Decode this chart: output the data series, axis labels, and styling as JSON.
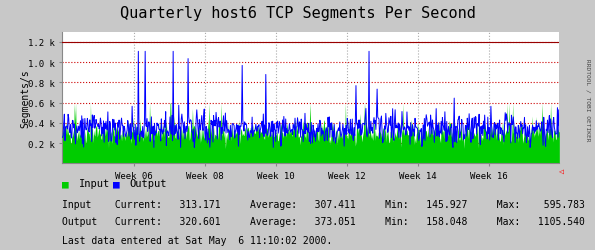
{
  "title": "Quarterly host6 TCP Segments Per Second",
  "ylabel": "Segments/s",
  "bg_color": "#c8c8c8",
  "plot_bg_color": "#ffffff",
  "grid_color_h": "#cc0000",
  "grid_color_v": "#aaaaaa",
  "input_color": "#00cc00",
  "output_color": "#0000ff",
  "ytick_labels": [
    "0.2 k",
    "0.4 k",
    "0.6 k",
    "0.8 k",
    "1.0 k",
    "1.2 k"
  ],
  "ytick_values": [
    200,
    400,
    600,
    800,
    1000,
    1200
  ],
  "ymax": 1300,
  "ymin": 0,
  "xtick_labels": [
    "Week 06",
    "Week 08",
    "Week 10",
    "Week 12",
    "Week 14",
    "Week 16"
  ],
  "legend_input": "Input",
  "legend_output": "Output",
  "stat_line1": "Input    Current:   313.171     Average:   307.411     Min:   145.927     Max:    595.783",
  "stat_line2": "Output   Current:   320.601     Average:   373.051     Min:   158.048     Max:   1105.540",
  "footer": "Last data entered at Sat May  6 11:10:02 2000.",
  "right_label": "RRDTOOL / TOBI OETIKER",
  "num_points": 800,
  "input_avg": 307,
  "input_min": 146,
  "input_max": 596,
  "output_avg": 373,
  "output_min": 158,
  "output_max": 1106,
  "seed": 42
}
